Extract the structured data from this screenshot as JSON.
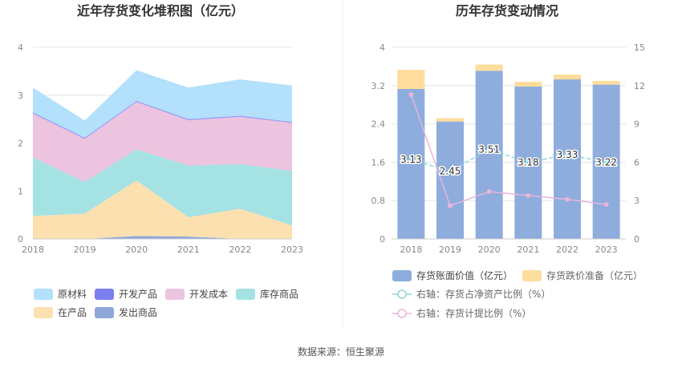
{
  "source_text": "数据来源：恒生聚源",
  "chart_data": [
    {
      "type": "area",
      "title": "近年存货变化堆积图（亿元）",
      "x": [
        "2018",
        "2019",
        "2020",
        "2021",
        "2022",
        "2023"
      ],
      "ylim": [
        0,
        4
      ],
      "yticks": [
        "0",
        "1",
        "2",
        "3",
        "4"
      ],
      "grid": true,
      "legend_position": "bottom",
      "stack_order": [
        "发出商品",
        "在产品",
        "库存商品",
        "开发成本",
        "开发产品",
        "原材料"
      ],
      "series": [
        {
          "name": "原材料",
          "color": "#b3e0fb",
          "values": [
            0.52,
            0.36,
            0.64,
            0.66,
            0.76,
            0.76
          ]
        },
        {
          "name": "开发产品",
          "color": "#7b7ff0",
          "values": [
            0.02,
            0.02,
            0.02,
            0.02,
            0.02,
            0.02
          ]
        },
        {
          "name": "开发成本",
          "color": "#ecc4df",
          "values": [
            0.92,
            0.9,
            0.99,
            0.95,
            0.99,
            1.0
          ]
        },
        {
          "name": "库存商品",
          "color": "#a5e2e3",
          "values": [
            1.22,
            0.66,
            0.65,
            1.08,
            0.93,
            1.14
          ]
        },
        {
          "name": "在产品",
          "color": "#fde0b0",
          "values": [
            0.48,
            0.53,
            1.16,
            0.4,
            0.63,
            0.28
          ]
        },
        {
          "name": "发出商品",
          "color": "#8ea8d8",
          "values": [
            0.0,
            0.0,
            0.06,
            0.05,
            0.0,
            0.0
          ]
        }
      ],
      "legend_order": [
        "原材料",
        "开发产品",
        "开发成本",
        "库存商品",
        "在产品",
        "发出商品"
      ]
    },
    {
      "type": "bar",
      "title": "历年存货变动情况",
      "categories": [
        "2018",
        "2019",
        "2020",
        "2021",
        "2022",
        "2023"
      ],
      "ylim": [
        0,
        4
      ],
      "yticks": [
        "0",
        "0.8",
        "1.6",
        "2.4",
        "3.2",
        "4"
      ],
      "y2lim": [
        0,
        15
      ],
      "y2ticks": [
        "0",
        "3",
        "6",
        "9",
        "12",
        "15"
      ],
      "grid": true,
      "legend_position": "bottom",
      "series": [
        {
          "name": "存货账面价值（亿元）",
          "kind": "bar",
          "axis": "left",
          "color": "#8eaddc",
          "values": [
            3.13,
            2.45,
            3.51,
            3.18,
            3.33,
            3.22
          ]
        },
        {
          "name": "存货跌价准备（亿元）",
          "kind": "bar-stack",
          "axis": "left",
          "color": "#fddc9c",
          "values": [
            0.4,
            0.07,
            0.13,
            0.1,
            0.1,
            0.08
          ]
        },
        {
          "name": "右轴：存货占净资产比例（%）",
          "kind": "line",
          "axis": "right",
          "color": "#8dd9d4",
          "values": [
            6.2,
            5.3,
            7.0,
            6.0,
            6.6,
            6.0
          ]
        },
        {
          "name": "右轴：存货计提比例（%）",
          "kind": "line",
          "axis": "right",
          "color": "#e8b4dc",
          "values": [
            11.3,
            2.6,
            3.7,
            3.4,
            3.1,
            2.7
          ]
        }
      ],
      "data_labels": [
        "3.13",
        "2.45",
        "3.51",
        "3.18",
        "3.33",
        "3.22"
      ]
    }
  ]
}
